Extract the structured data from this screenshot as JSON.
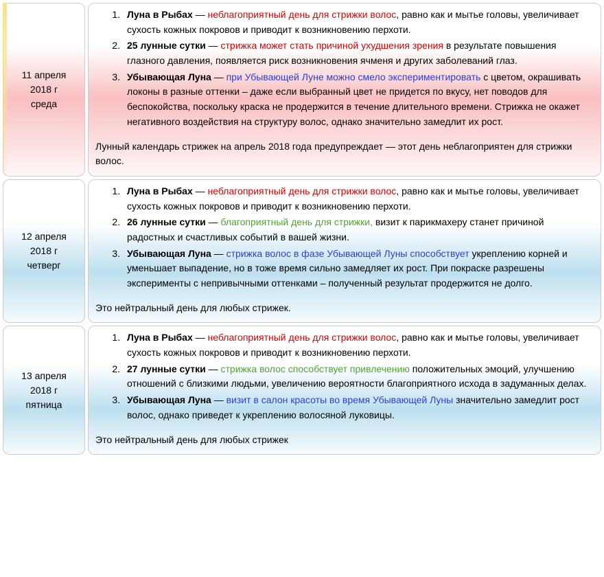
{
  "colors": {
    "red_text": "#d40000",
    "green_text": "#4fa52e",
    "blue_text": "#2a3fd4",
    "border": "#cccccc",
    "bg_red_mid": "#f9bfc1",
    "bg_blue_mid": "#bedfef"
  },
  "rows": [
    {
      "date": {
        "line1": "11 апреля",
        "line2": "2018 г",
        "line3": "среда"
      },
      "bgClass": "bg-red",
      "items": [
        {
          "bold": "Луна в Рыбах",
          "dash": " — ",
          "hl": "неблагоприятный день для стрижки волос",
          "hlClass": "red-text",
          "rest": ", равно как и мытье головы, увеличивает сухость кожных покровов и приводит к возникновению перхоти."
        },
        {
          "bold": "25 лунные сутки",
          "dash": " — ",
          "hl": "стрижка может стать причиной ухудшения зрения",
          "hlClass": "red-text",
          "rest": " в результате повышения глазного давления, появляется риск возникновения ячменя и других заболеваний глаз."
        },
        {
          "bold": "Убывающая Луна",
          "dash": " — ",
          "hl": "при Убывающей Луне можно смело экспериментировать",
          "hlClass": "blue-text",
          "rest": " с цветом, окрашивать локоны в разные оттенки – даже если выбранный цвет не придется по вкусу, нет поводов для беспокойства, поскольку краска не продержится в течение длительного времени. Стрижка не окажет негативного воздействия на структуру волос, однако значительно замедлит их рост."
        }
      ],
      "summary": "Лунный календарь стрижек на апрель 2018 года предупреждает — этот день неблагоприятен для стрижки волос."
    },
    {
      "date": {
        "line1": "12 апреля",
        "line2": "2018 г",
        "line3": "четверг"
      },
      "bgClass": "bg-blue",
      "items": [
        {
          "bold": "Луна в Рыбах",
          "dash": " — ",
          "hl": "неблагоприятный день для стрижки волос",
          "hlClass": "red-text",
          "rest": ", равно как и мытье головы, увеличивает сухость кожных покровов и приводит к возникновению перхоти."
        },
        {
          "bold": "26 лунные сутки",
          "dash": " — ",
          "hl": "благоприятный день для стрижки,",
          "hlClass": "green-text",
          "rest": " визит к парикмахеру станет причиной радостных и счастливых событий в вашей жизни."
        },
        {
          "bold": "Убывающая Луна",
          "dash": " — ",
          "hl": "стрижка волос в фазе Убывающей Луны способствует",
          "hlClass": "blue-text",
          "rest": " укреплению корней и уменьшает выпадение, но в тоже время сильно замедляет их рост. При покраске разрешены эксперименты с непривычными оттенками – полученный результат продержится не долго."
        }
      ],
      "summary": "Это нейтральный день для любых стрижек."
    },
    {
      "date": {
        "line1": "13 апреля",
        "line2": "2018 г",
        "line3": "пятница"
      },
      "bgClass": "bg-blue",
      "items": [
        {
          "bold": "Луна в Рыбах",
          "dash": " — ",
          "hl": "неблагоприятный день для стрижки волос",
          "hlClass": "red-text",
          "rest": ", равно как и мытье головы, увеличивает сухость кожных покровов и приводит к возникновению перхоти."
        },
        {
          "bold": "27 лунные сутки",
          "dash": " — ",
          "hl": "стрижка волос способствует привлечению",
          "hlClass": "green-text",
          "rest": " положительных эмоций, улучшению отношений с близкими людьми, увеличению вероятности благоприятного исхода в задуманных делах."
        },
        {
          "bold": "Убывающая Луна",
          "dash": " — ",
          "hl": "визит в салон красоты во время Убывающей Луны",
          "hlClass": "blue-text",
          "rest": " значительно замедлит рост волос, однако приведет к укреплению волосяной луковицы."
        }
      ],
      "summary": "Это нейтральный день для любых стрижек"
    }
  ]
}
